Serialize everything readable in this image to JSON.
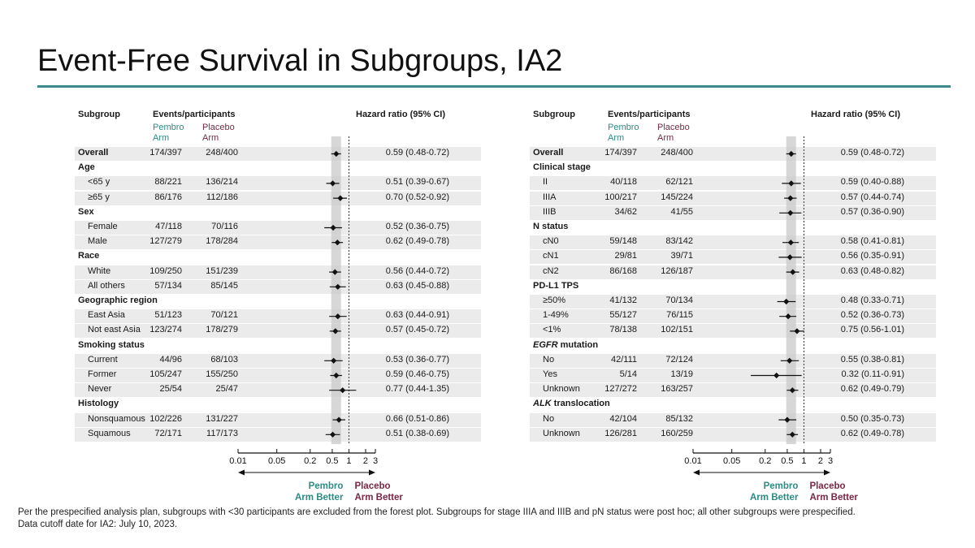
{
  "slide": {
    "title": "Event-Free Survival in Subgroups, IA2",
    "footnote": "Per the prespecified analysis plan, subgroups with <30 participants are excluded from the forest plot. Subgroups for stage IIIA and IIIB and pN status were post hoc; all other subgroups were prespecified.",
    "footnote2": "Data cutoff date for IA2: July 10, 2023."
  },
  "headers": {
    "subgroup": "Subgroup",
    "events": "Events/participants",
    "pembro_line1": "Pembro",
    "pembro_line2": "Arm",
    "placebo_line1": "Placebo",
    "placebo_line2": "Arm",
    "hr": "Hazard ratio (95% CI)"
  },
  "colors": {
    "pembro": "#2e8b84",
    "placebo": "#7a2845",
    "title_rule": "#3b8a8a",
    "shade": "#ebebeb"
  },
  "axis": {
    "ticks": [
      "0.01",
      "0.05",
      "0.2",
      "0.5",
      "1",
      "2",
      "3"
    ],
    "tick_values": [
      0.01,
      0.05,
      0.2,
      0.5,
      1,
      2,
      3
    ],
    "better_left_1": "Pembro",
    "better_left_2": "Arm Better",
    "better_right_1": "Placebo",
    "better_right_2": "Arm Better",
    "scale": "log"
  },
  "chart_data": [
    {
      "type": "forest",
      "panel": "left",
      "reference_hr": 1,
      "overall_hr": 0.59,
      "rows": [
        {
          "label": "Overall",
          "kind": "overall",
          "pembro": "174/397",
          "placebo": "248/400",
          "hr": 0.59,
          "lo": 0.48,
          "hi": 0.72,
          "hr_text": "0.59 (0.48-0.72)"
        },
        {
          "label": "Age",
          "kind": "category"
        },
        {
          "label": "<65 y",
          "kind": "sub",
          "pembro": "88/221",
          "placebo": "136/214",
          "hr": 0.51,
          "lo": 0.39,
          "hi": 0.67,
          "hr_text": "0.51 (0.39-0.67)"
        },
        {
          "label": "≥65 y",
          "kind": "sub",
          "pembro": "86/176",
          "placebo": "112/186",
          "hr": 0.7,
          "lo": 0.52,
          "hi": 0.92,
          "hr_text": "0.70 (0.52-0.92)"
        },
        {
          "label": "Sex",
          "kind": "category"
        },
        {
          "label": "Female",
          "kind": "sub",
          "pembro": "47/118",
          "placebo": "70/116",
          "hr": 0.52,
          "lo": 0.36,
          "hi": 0.75,
          "hr_text": "0.52 (0.36-0.75)"
        },
        {
          "label": "Male",
          "kind": "sub",
          "pembro": "127/279",
          "placebo": "178/284",
          "hr": 0.62,
          "lo": 0.49,
          "hi": 0.78,
          "hr_text": "0.62 (0.49-0.78)"
        },
        {
          "label": "Race",
          "kind": "category"
        },
        {
          "label": "White",
          "kind": "sub",
          "pembro": "109/250",
          "placebo": "151/239",
          "hr": 0.56,
          "lo": 0.44,
          "hi": 0.72,
          "hr_text": "0.56 (0.44-0.72)"
        },
        {
          "label": "All others",
          "kind": "sub",
          "pembro": "57/134",
          "placebo": "85/145",
          "hr": 0.63,
          "lo": 0.45,
          "hi": 0.88,
          "hr_text": "0.63 (0.45-0.88)"
        },
        {
          "label": "Geographic region",
          "kind": "category"
        },
        {
          "label": "East Asia",
          "kind": "sub",
          "pembro": "51/123",
          "placebo": "70/121",
          "hr": 0.63,
          "lo": 0.44,
          "hi": 0.91,
          "hr_text": "0.63 (0.44-0.91)"
        },
        {
          "label": "Not east Asia",
          "kind": "sub",
          "pembro": "123/274",
          "placebo": "178/279",
          "hr": 0.57,
          "lo": 0.45,
          "hi": 0.72,
          "hr_text": "0.57 (0.45-0.72)"
        },
        {
          "label": "Smoking status",
          "kind": "category"
        },
        {
          "label": "Current",
          "kind": "sub",
          "pembro": "44/96",
          "placebo": "68/103",
          "hr": 0.53,
          "lo": 0.36,
          "hi": 0.77,
          "hr_text": "0.53 (0.36-0.77)"
        },
        {
          "label": "Former",
          "kind": "sub",
          "pembro": "105/247",
          "placebo": "155/250",
          "hr": 0.59,
          "lo": 0.46,
          "hi": 0.75,
          "hr_text": "0.59 (0.46-0.75)"
        },
        {
          "label": "Never",
          "kind": "sub",
          "pembro": "25/54",
          "placebo": "25/47",
          "hr": 0.77,
          "lo": 0.44,
          "hi": 1.35,
          "hr_text": "0.77 (0.44-1.35)"
        },
        {
          "label": "Histology",
          "kind": "category"
        },
        {
          "label": "Nonsquamous",
          "kind": "sub",
          "pembro": "102/226",
          "placebo": "131/227",
          "hr": 0.66,
          "lo": 0.51,
          "hi": 0.86,
          "hr_text": "0.66 (0.51-0.86)"
        },
        {
          "label": "Squamous",
          "kind": "sub",
          "pembro": "72/171",
          "placebo": "117/173",
          "hr": 0.51,
          "lo": 0.38,
          "hi": 0.69,
          "hr_text": "0.51 (0.38-0.69)"
        }
      ]
    },
    {
      "type": "forest",
      "panel": "right",
      "reference_hr": 1,
      "overall_hr": 0.59,
      "rows": [
        {
          "label": "Overall",
          "kind": "overall",
          "pembro": "174/397",
          "placebo": "248/400",
          "hr": 0.59,
          "lo": 0.48,
          "hi": 0.72,
          "hr_text": "0.59 (0.48-0.72)"
        },
        {
          "label": "Clinical stage",
          "kind": "category"
        },
        {
          "label": "II",
          "kind": "sub",
          "pembro": "40/118",
          "placebo": "62/121",
          "hr": 0.59,
          "lo": 0.4,
          "hi": 0.88,
          "hr_text": "0.59 (0.40-0.88)"
        },
        {
          "label": "IIIA",
          "kind": "sub",
          "pembro": "100/217",
          "placebo": "145/224",
          "hr": 0.57,
          "lo": 0.44,
          "hi": 0.74,
          "hr_text": "0.57 (0.44-0.74)"
        },
        {
          "label": "IIIB",
          "kind": "sub",
          "pembro": "34/62",
          "placebo": "41/55",
          "hr": 0.57,
          "lo": 0.36,
          "hi": 0.9,
          "hr_text": "0.57 (0.36-0.90)"
        },
        {
          "label": "N status",
          "kind": "category"
        },
        {
          "label": "cN0",
          "kind": "sub",
          "pembro": "59/148",
          "placebo": "83/142",
          "hr": 0.58,
          "lo": 0.41,
          "hi": 0.81,
          "hr_text": "0.58 (0.41-0.81)"
        },
        {
          "label": "cN1",
          "kind": "sub",
          "pembro": "29/81",
          "placebo": "39/71",
          "hr": 0.56,
          "lo": 0.35,
          "hi": 0.91,
          "hr_text": "0.56 (0.35-0.91)"
        },
        {
          "label": "cN2",
          "kind": "sub",
          "pembro": "86/168",
          "placebo": "126/187",
          "hr": 0.63,
          "lo": 0.48,
          "hi": 0.82,
          "hr_text": "0.63 (0.48-0.82)"
        },
        {
          "label": "PD-L1 TPS",
          "kind": "category"
        },
        {
          "label": "≥50%",
          "kind": "sub",
          "pembro": "41/132",
          "placebo": "70/134",
          "hr": 0.48,
          "lo": 0.33,
          "hi": 0.71,
          "hr_text": "0.48 (0.33-0.71)"
        },
        {
          "label": "1-49%",
          "kind": "sub",
          "pembro": "55/127",
          "placebo": "76/115",
          "hr": 0.52,
          "lo": 0.36,
          "hi": 0.73,
          "hr_text": "0.52 (0.36-0.73)"
        },
        {
          "label": "<1%",
          "kind": "sub",
          "pembro": "78/138",
          "placebo": "102/151",
          "hr": 0.75,
          "lo": 0.56,
          "hi": 1.01,
          "hr_text": "0.75 (0.56-1.01)"
        },
        {
          "label": "EGFR mutation",
          "kind": "category",
          "italic_prefix": "EGFR",
          "rest": " mutation"
        },
        {
          "label": "No",
          "kind": "sub",
          "pembro": "42/111",
          "placebo": "72/124",
          "hr": 0.55,
          "lo": 0.38,
          "hi": 0.81,
          "hr_text": "0.55 (0.38-0.81)"
        },
        {
          "label": "Yes",
          "kind": "sub",
          "pembro": "5/14",
          "placebo": "13/19",
          "hr": 0.32,
          "lo": 0.11,
          "hi": 0.91,
          "hr_text": "0.32 (0.11-0.91)"
        },
        {
          "label": "Unknown",
          "kind": "sub",
          "pembro": "127/272",
          "placebo": "163/257",
          "hr": 0.62,
          "lo": 0.49,
          "hi": 0.79,
          "hr_text": "0.62 (0.49-0.79)"
        },
        {
          "label": "ALK translocation",
          "kind": "category",
          "italic_prefix": "ALK",
          "rest": " translocation"
        },
        {
          "label": "No",
          "kind": "sub",
          "pembro": "42/104",
          "placebo": "85/132",
          "hr": 0.5,
          "lo": 0.35,
          "hi": 0.73,
          "hr_text": "0.50 (0.35-0.73)"
        },
        {
          "label": "Unknown",
          "kind": "sub",
          "pembro": "126/281",
          "placebo": "160/259",
          "hr": 0.62,
          "lo": 0.49,
          "hi": 0.78,
          "hr_text": "0.62 (0.49-0.78)"
        }
      ]
    }
  ]
}
